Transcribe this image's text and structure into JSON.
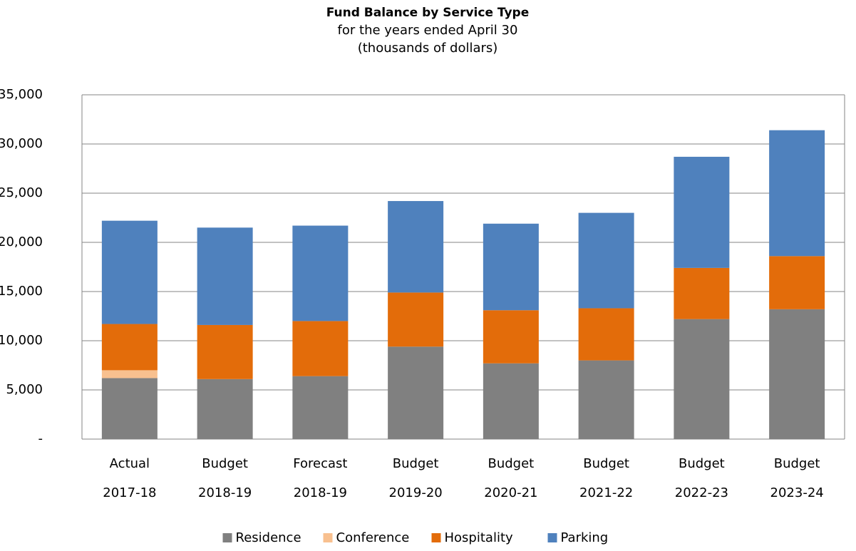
{
  "chart_data": {
    "type": "stacked_bar",
    "title": "Fund Balance by Service Type",
    "subtitle": [
      "for the years ended April 30",
      "(thousands of dollars)"
    ],
    "categories": [
      [
        "Actual",
        "2017-18"
      ],
      [
        "Budget",
        "2018-19"
      ],
      [
        "Forecast",
        "2018-19"
      ],
      [
        "Budget",
        "2019-20"
      ],
      [
        "Budget",
        "2020-21"
      ],
      [
        "Budget",
        "2021-22"
      ],
      [
        "Budget",
        "2022-23"
      ],
      [
        "Budget",
        "2023-24"
      ]
    ],
    "series": [
      {
        "name": "Residence",
        "color": "#808080",
        "values": [
          6200,
          6100,
          6400,
          9400,
          7700,
          8000,
          12200,
          13200
        ]
      },
      {
        "name": "Conference",
        "color": "#f8c08f",
        "values": [
          800,
          0,
          0,
          0,
          0,
          0,
          0,
          0
        ]
      },
      {
        "name": "Hospitality",
        "color": "#e36c0a",
        "values": [
          4700,
          5500,
          5600,
          5500,
          5400,
          5300,
          5200,
          5400
        ]
      },
      {
        "name": "Parking",
        "color": "#4f81bd",
        "values": [
          10500,
          9900,
          9700,
          9300,
          8800,
          9700,
          11300,
          12800
        ]
      }
    ],
    "ylim": [
      0,
      35000
    ],
    "yticks": [
      {
        "value": 0,
        "label": "-"
      },
      {
        "value": 5000,
        "label": "5,000"
      },
      {
        "value": 10000,
        "label": "10,000"
      },
      {
        "value": 15000,
        "label": "15,000"
      },
      {
        "value": 20000,
        "label": "20,000"
      },
      {
        "value": 25000,
        "label": "25,000"
      },
      {
        "value": 30000,
        "label": "30,000"
      },
      {
        "value": 35000,
        "label": "35,000"
      }
    ],
    "grid": true,
    "legend": "bottom"
  }
}
